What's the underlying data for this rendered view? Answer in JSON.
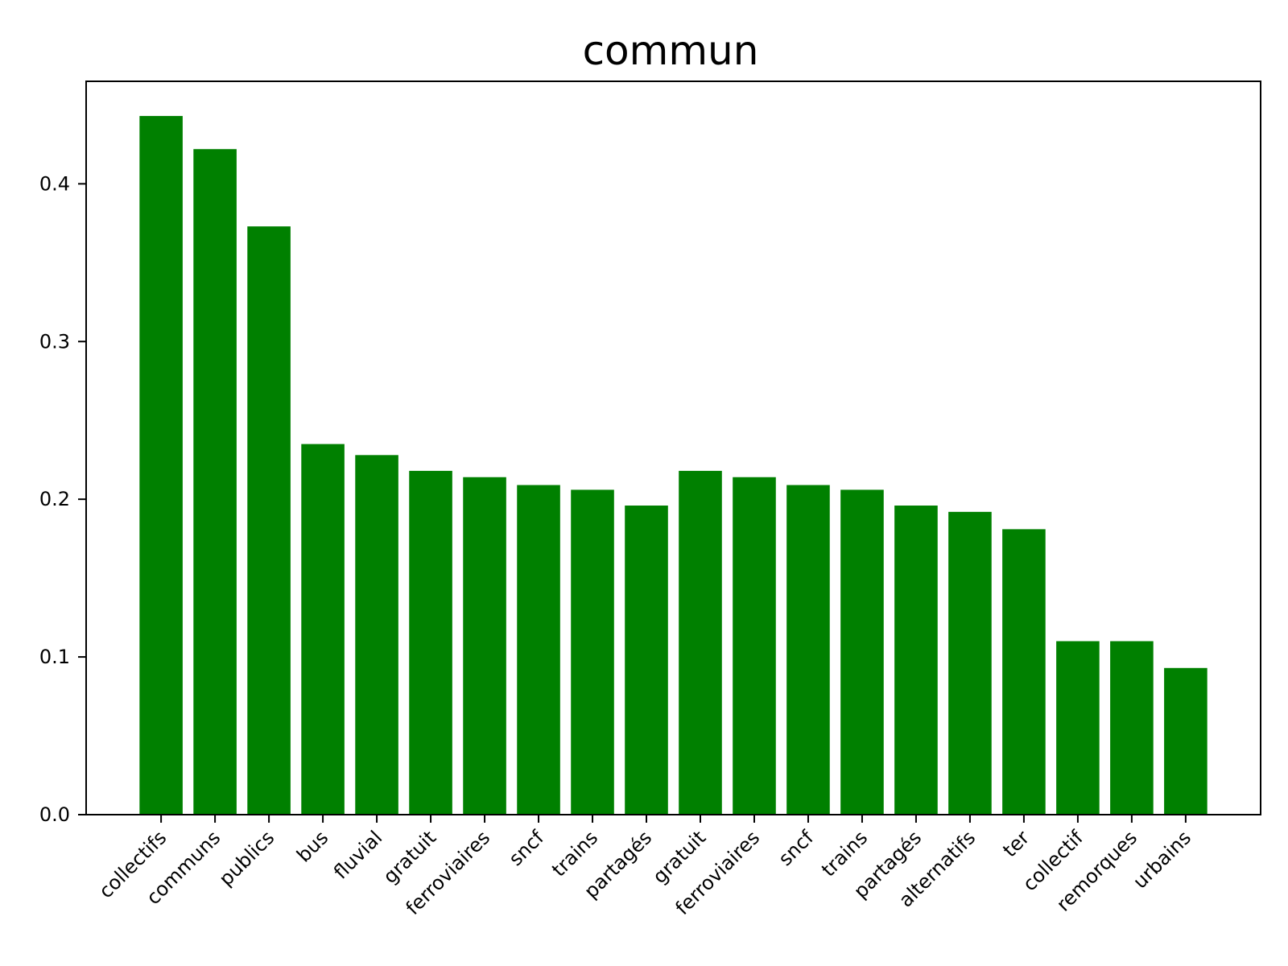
{
  "chart_data": {
    "type": "bar",
    "title": "commun",
    "xlabel": "",
    "ylabel": "",
    "categories": [
      "collectifs",
      "communs",
      "publics",
      "bus",
      "fluvial",
      "gratuit",
      "ferroviaires",
      "sncf",
      "trains",
      "partagés",
      "gratuit",
      "ferroviaires",
      "sncf",
      "trains",
      "partagés",
      "alternatifs",
      "ter",
      "collectif",
      "remorques",
      "urbains"
    ],
    "values": [
      0.443,
      0.422,
      0.373,
      0.235,
      0.228,
      0.218,
      0.214,
      0.209,
      0.206,
      0.196,
      0.218,
      0.214,
      0.209,
      0.206,
      0.196,
      0.192,
      0.181,
      0.11,
      0.11,
      0.093
    ],
    "ylim": [
      0,
      0.465
    ],
    "yticks": [
      0.0,
      0.1,
      0.2,
      0.3,
      0.4
    ],
    "ytick_labels": [
      "0.0",
      "0.1",
      "0.2",
      "0.3",
      "0.4"
    ],
    "bar_color": "#008000",
    "grid": false
  }
}
